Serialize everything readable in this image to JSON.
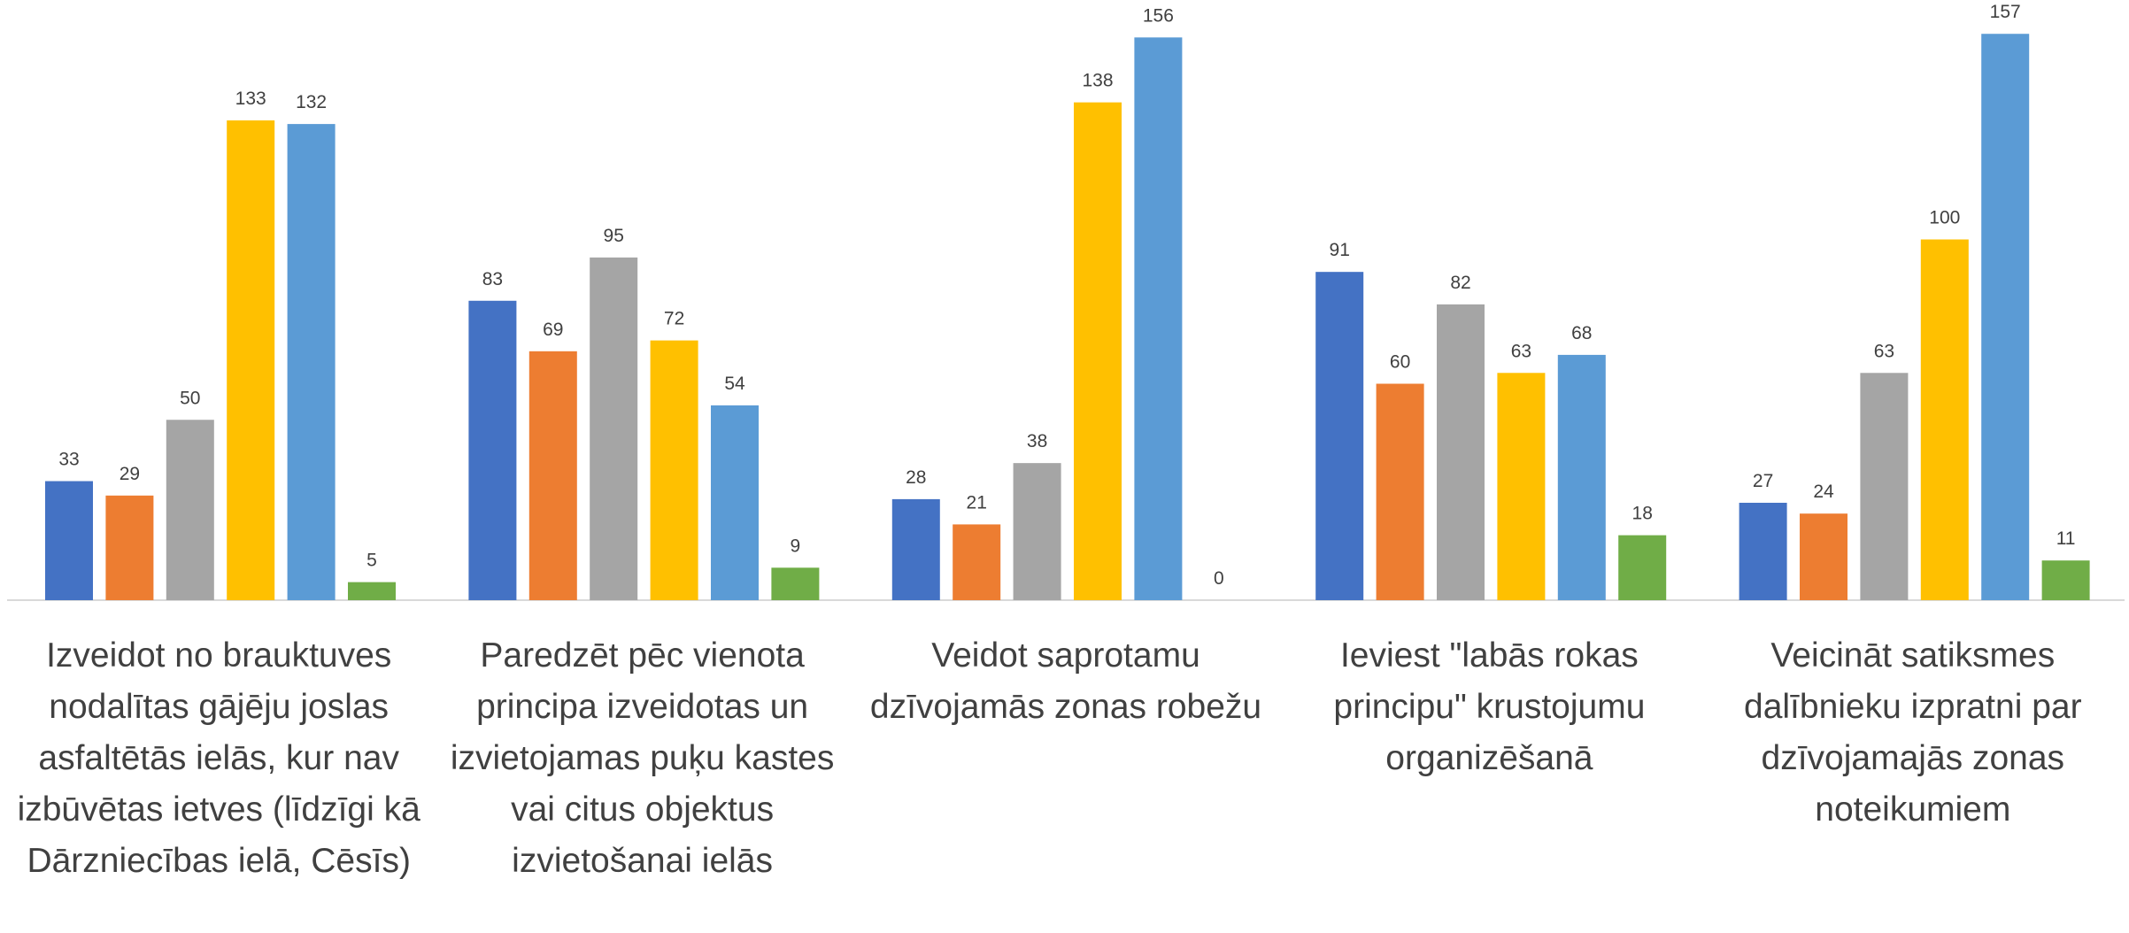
{
  "chart_data": {
    "type": "bar",
    "categories": [
      "Izveidot no brauktuves nodalītas gājēju joslas asfaltētās ielās, kur nav izbūvētas ietves (līdzīgi kā Dārzniecības ielā, Cēsīs)",
      "Paredzēt pēc vienota principa izveidotas un izvietojamas puķu kastes vai citus objektus izvietošanai ielās",
      "Veidot saprotamu dzīvojamās zonas robežu",
      "Ieviest \"labās rokas principu\" krustojumu organizēšanā",
      "Veicināt satiksmes dalībnieku izpratni par dzīvojamajās zonas noteikumiem"
    ],
    "series": [
      {
        "color": "#4472c4",
        "values": [
          33,
          83,
          28,
          91,
          27
        ]
      },
      {
        "color": "#ed7d31",
        "values": [
          29,
          69,
          21,
          60,
          24
        ]
      },
      {
        "color": "#a5a5a5",
        "values": [
          50,
          95,
          38,
          82,
          63
        ]
      },
      {
        "color": "#ffc000",
        "values": [
          133,
          72,
          138,
          63,
          100
        ]
      },
      {
        "color": "#5b9bd5",
        "values": [
          132,
          54,
          156,
          68,
          157
        ]
      },
      {
        "color": "#70ad47",
        "values": [
          5,
          9,
          0,
          18,
          11
        ]
      }
    ],
    "ylim": [
      0,
      160
    ]
  }
}
